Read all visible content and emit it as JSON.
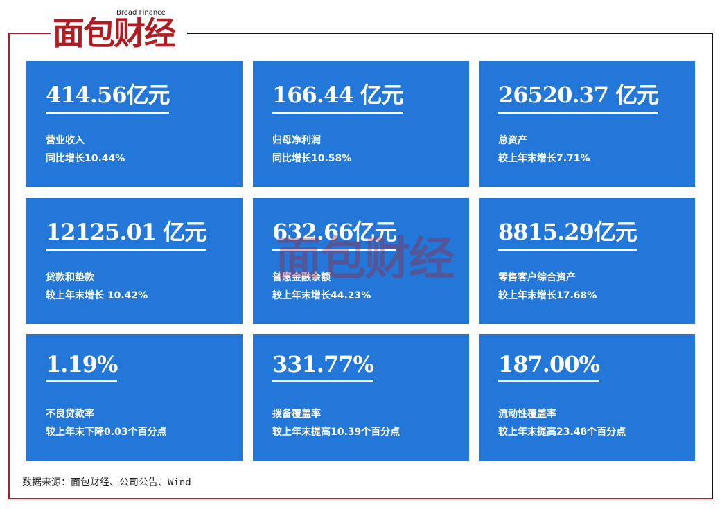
{
  "header": {
    "logo": "面包财经",
    "logo_en": "Bread Finance"
  },
  "tiles": [
    {
      "value": "414.56亿元",
      "label": "营业收入",
      "change": "同比增长10.44%"
    },
    {
      "value": "166.44 亿元",
      "label": "归母净利润",
      "change": "同比增长10.58%"
    },
    {
      "value": "26520.37 亿元",
      "label": "总资产",
      "change": "较上年末增长7.71%"
    },
    {
      "value": "12125.01 亿元",
      "label": "贷款和垫款",
      "change": "较上年末增长 10.42%"
    },
    {
      "value": "632.66亿元",
      "label": "普惠金融余额",
      "change": "较上年末增长44.23%"
    },
    {
      "value": "8815.29亿元",
      "label": "零售客户综合资产",
      "change": "较上年末增长17.68%"
    },
    {
      "value": "1.19%",
      "label": "不良贷款率",
      "change": "较上年末下降0.03个百分点"
    },
    {
      "value": "331.77%",
      "label": "拨备覆盖率",
      "change": "较上年末提高10.39个百分点"
    },
    {
      "value": "187.00%",
      "label": "流动性覆盖率",
      "change": "较上年末提高23.48个百分点"
    }
  ],
  "footer": {
    "source": "数据来源：面包财经、公司公告、Wind"
  }
}
